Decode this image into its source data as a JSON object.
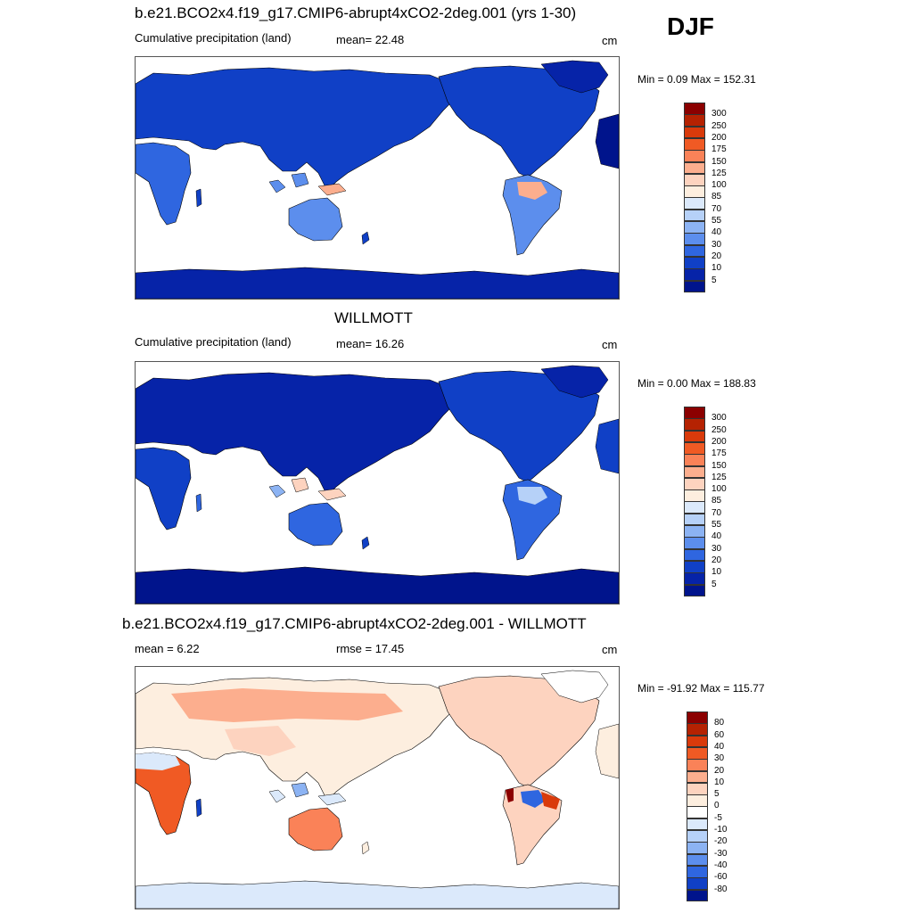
{
  "season": "DJF",
  "panels": [
    {
      "id": "model",
      "title": "b.e21.BCO2x4.f19_g17.CMIP6-abrupt4xCO2-2deg.001 (yrs 1-30)",
      "left_label": "Cumulative precipitation (land)",
      "mid_label": "mean=  22.48",
      "units": "cm",
      "minmax": "Min =   0.09 Max = 152.31",
      "legend": {
        "labels": [
          "300",
          "250",
          "200",
          "175",
          "150",
          "125",
          "100",
          "85",
          "70",
          "55",
          "40",
          "30",
          "20",
          "10",
          "5"
        ],
        "colors": [
          "#8b0000",
          "#b52202",
          "#d93a0b",
          "#f05a24",
          "#fa8258",
          "#fcae8e",
          "#fdd3bf",
          "#fdeedf",
          "#dbe9fb",
          "#b6d1f8",
          "#8cb3f3",
          "#5c8eed",
          "#2f66e0",
          "#1040c6",
          "#0623a8",
          "#00148c"
        ]
      }
    },
    {
      "id": "obs",
      "title": "WILLMOTT",
      "left_label": "Cumulative precipitation (land)",
      "mid_label": "mean=  16.26",
      "units": "cm",
      "minmax": "Min =   0.00 Max = 188.83",
      "legend": {
        "labels": [
          "300",
          "250",
          "200",
          "175",
          "150",
          "125",
          "100",
          "85",
          "70",
          "55",
          "40",
          "30",
          "20",
          "10",
          "5"
        ],
        "colors": [
          "#8b0000",
          "#b52202",
          "#d93a0b",
          "#f05a24",
          "#fa8258",
          "#fcae8e",
          "#fdd3bf",
          "#fdeedf",
          "#dbe9fb",
          "#b6d1f8",
          "#8cb3f3",
          "#5c8eed",
          "#2f66e0",
          "#1040c6",
          "#0623a8",
          "#00148c"
        ]
      }
    },
    {
      "id": "diff",
      "title": "b.e21.BCO2x4.f19_g17.CMIP6-abrupt4xCO2-2deg.001 - WILLMOTT",
      "left_label": "mean =   6.22",
      "mid_label": "rmse =  17.45",
      "units": "cm",
      "minmax": "Min = -91.92 Max = 115.77",
      "legend": {
        "labels": [
          "80",
          "60",
          "40",
          "30",
          "20",
          "10",
          "5",
          "0",
          "-5",
          "-10",
          "-20",
          "-30",
          "-40",
          "-60",
          "-80"
        ],
        "colors": [
          "#8b0000",
          "#b52202",
          "#d93a0b",
          "#f05a24",
          "#fa8258",
          "#fcae8e",
          "#fdd3bf",
          "#fdeedf",
          "#ffffff",
          "#dbe9fb",
          "#b6d1f8",
          "#8cb3f3",
          "#5c8eed",
          "#2f66e0",
          "#1040c6",
          "#00148c"
        ]
      }
    }
  ]
}
